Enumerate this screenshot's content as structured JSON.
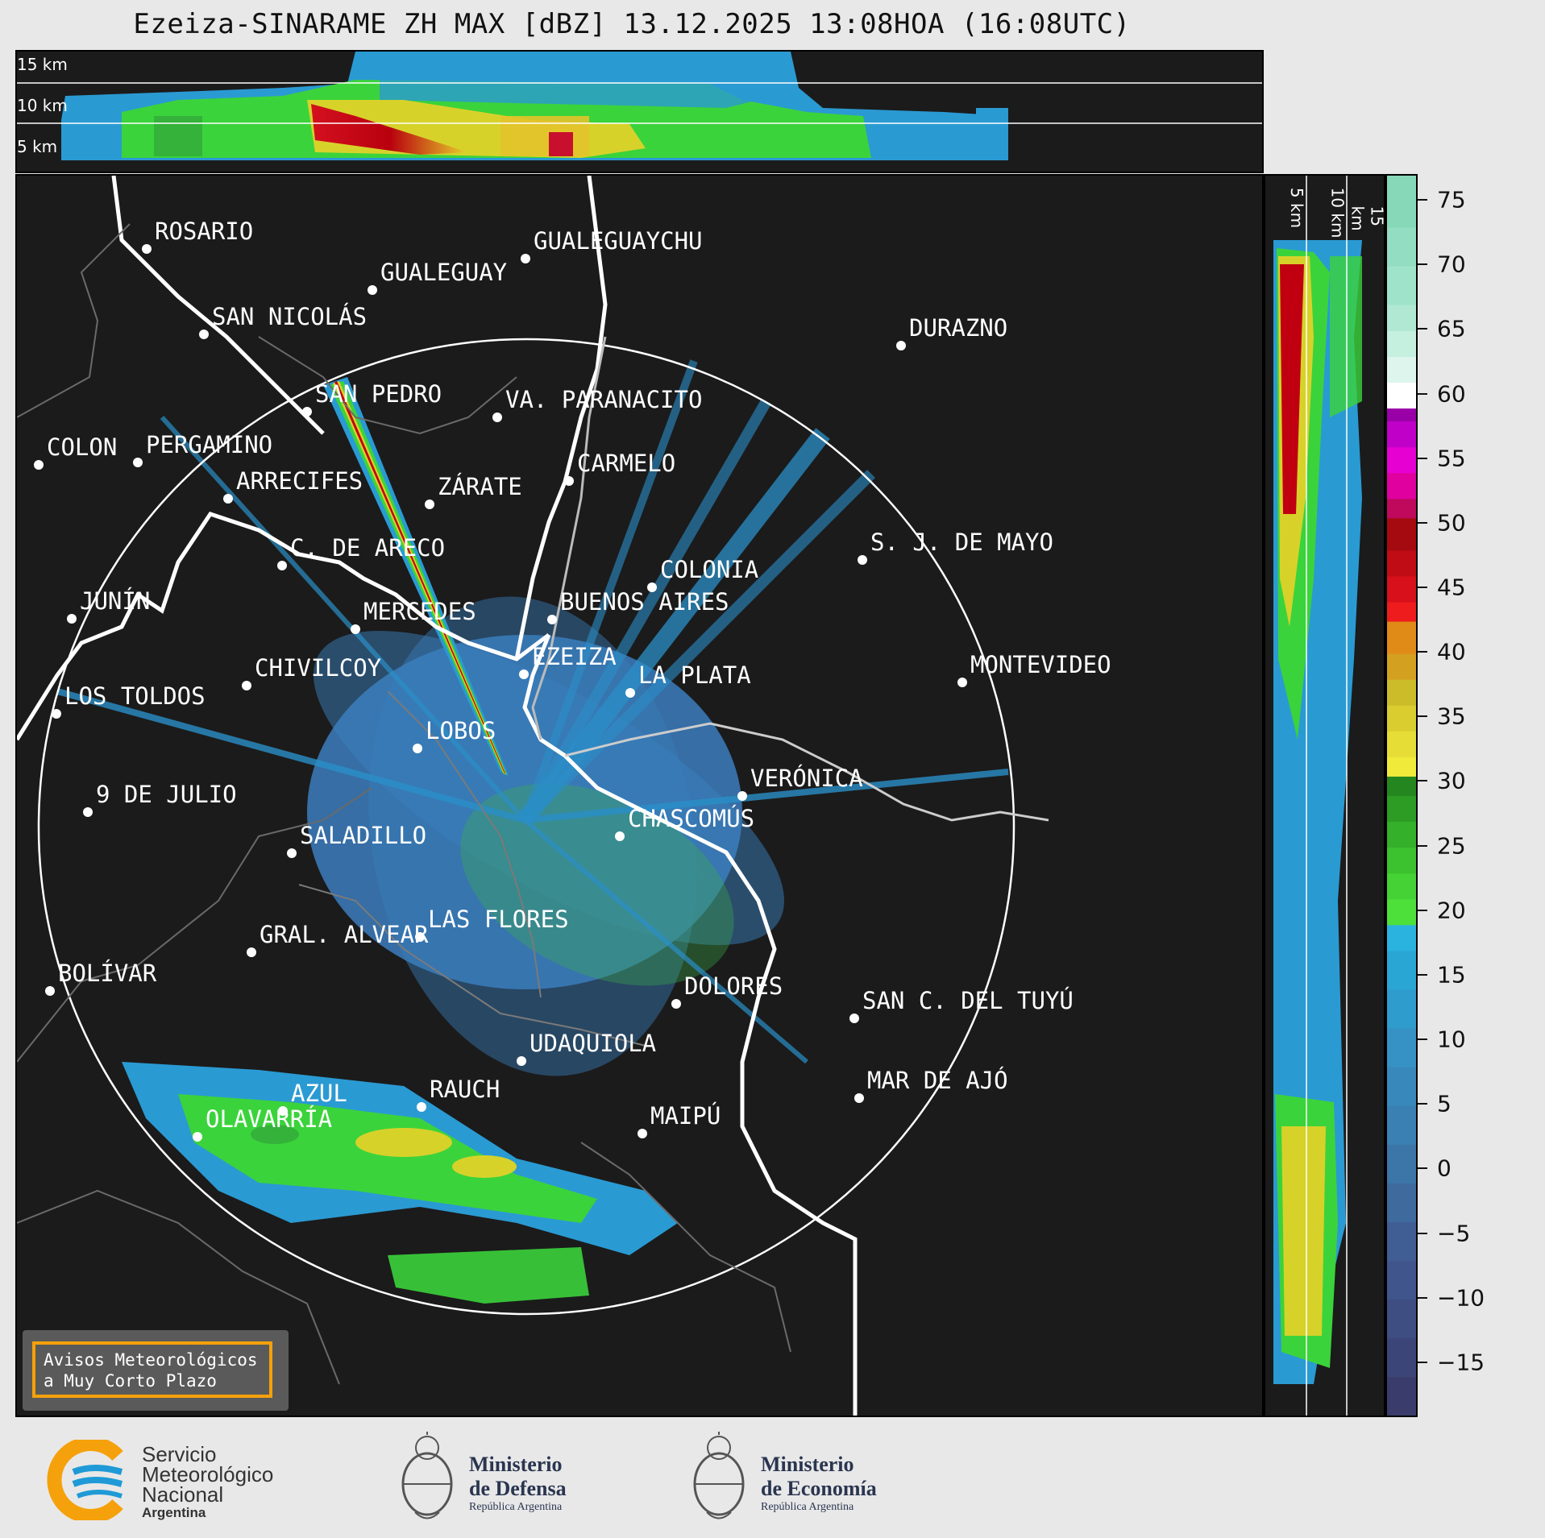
{
  "title": "Ezeiza-SINARAME ZH MAX [dBZ] 13.12.2025 13:08HOA (16:08UTC)",
  "top_panel": {
    "height_labels": [
      "15 km",
      "10 km",
      "5 km"
    ]
  },
  "side_panel": {
    "height_labels": [
      "5 km",
      "10 km",
      "15 km"
    ]
  },
  "colorbar": {
    "ticks": [
      "75",
      "70",
      "65",
      "60",
      "55",
      "50",
      "45",
      "40",
      "35",
      "30",
      "25",
      "20",
      "15",
      "10",
      "5",
      "0",
      "−5",
      "−10",
      "−15"
    ],
    "tick_values": [
      75,
      70,
      65,
      60,
      55,
      50,
      45,
      40,
      35,
      30,
      25,
      20,
      15,
      10,
      5,
      0,
      -5,
      -10,
      -15
    ],
    "range": [
      -19,
      77
    ],
    "unit": "dBZ"
  },
  "cities": [
    {
      "name": "ROSARIO"
    },
    {
      "name": "GUALEGUAYCHU"
    },
    {
      "name": "GUALEGUAY"
    },
    {
      "name": "SAN NICOLÁS"
    },
    {
      "name": "DURAZNO"
    },
    {
      "name": "SAN PEDRO"
    },
    {
      "name": "VA. PARANACITO"
    },
    {
      "name": "COLON"
    },
    {
      "name": "PERGAMINO"
    },
    {
      "name": "CARMELO"
    },
    {
      "name": "ARRECIFES"
    },
    {
      "name": "ZÁRATE"
    },
    {
      "name": "S. J. DE MAYO"
    },
    {
      "name": "C. DE ARECO"
    },
    {
      "name": "COLONIA"
    },
    {
      "name": "BUENOS AIRES"
    },
    {
      "name": "JUNÍN"
    },
    {
      "name": "MERCEDES"
    },
    {
      "name": "EZEIZA"
    },
    {
      "name": "MONTEVIDEO"
    },
    {
      "name": "CHIVILCOY"
    },
    {
      "name": "LA PLATA"
    },
    {
      "name": "LOS TOLDOS"
    },
    {
      "name": "LOBOS"
    },
    {
      "name": "VERÓNICA"
    },
    {
      "name": "9 DE JULIO"
    },
    {
      "name": "CHASCOMÚS"
    },
    {
      "name": "SALADILLO"
    },
    {
      "name": "GRAL. ALVEAR"
    },
    {
      "name": "LAS FLORES"
    },
    {
      "name": "BOLÍVAR"
    },
    {
      "name": "DOLORES"
    },
    {
      "name": "SAN C. DEL TUYÚ"
    },
    {
      "name": "UDAQUIOLA"
    },
    {
      "name": "MAR DE AJÓ"
    },
    {
      "name": "AZUL"
    },
    {
      "name": "RAUCH"
    },
    {
      "name": "MAIPÚ"
    },
    {
      "name": "OLAVARRÍA"
    }
  ],
  "avisos": {
    "line1": "Avisos Meteorológicos",
    "line2": "a Muy Corto Plazo"
  },
  "logos": {
    "smn": {
      "line1": "Servicio",
      "line2": "Meteorológico",
      "line3": "Nacional",
      "line4": "Argentina"
    },
    "defensa": {
      "line1": "Ministerio",
      "line2": "de Defensa",
      "line3": "República Argentina"
    },
    "economia": {
      "line1": "Ministerio",
      "line2": "de Economía",
      "line3": "República Argentina"
    }
  },
  "colors": {
    "accent_orange": "#f5a10b",
    "smn_blue": "#1f9ad6",
    "ring": "#ffffff"
  }
}
